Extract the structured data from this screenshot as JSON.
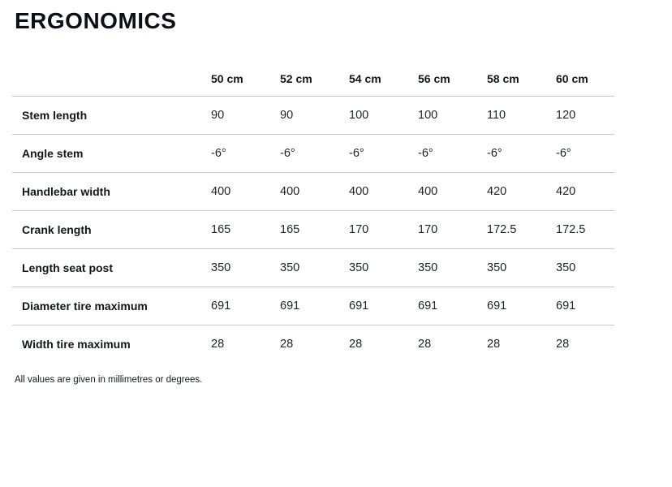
{
  "page": {
    "title": "ERGONOMICS",
    "footnote": "All values are given in millimetres or degrees."
  },
  "table": {
    "columns": [
      "50 cm",
      "52 cm",
      "54 cm",
      "56 cm",
      "58 cm",
      "60 cm"
    ],
    "rows": [
      {
        "label": "Stem length",
        "values": [
          "90",
          "90",
          "100",
          "100",
          "110",
          "120"
        ]
      },
      {
        "label": "Angle stem",
        "values": [
          "-6°",
          "-6°",
          "-6°",
          "-6°",
          "-6°",
          "-6°"
        ]
      },
      {
        "label": "Handlebar width",
        "values": [
          "400",
          "400",
          "400",
          "400",
          "420",
          "420"
        ]
      },
      {
        "label": "Crank length",
        "values": [
          "165",
          "165",
          "170",
          "170",
          "172.5",
          "172.5"
        ]
      },
      {
        "label": "Length seat post",
        "values": [
          "350",
          "350",
          "350",
          "350",
          "350",
          "350"
        ]
      },
      {
        "label": "Diameter tire maximum",
        "values": [
          "691",
          "691",
          "691",
          "691",
          "691",
          "691"
        ]
      },
      {
        "label": "Width tire maximum",
        "values": [
          "28",
          "28",
          "28",
          "28",
          "28",
          "28"
        ]
      }
    ]
  },
  "colors": {
    "title_text": "#0b1016",
    "label_text": "#12161a",
    "value_text": "#202428",
    "divider": "#c8c8c8",
    "background": "#ffffff"
  }
}
